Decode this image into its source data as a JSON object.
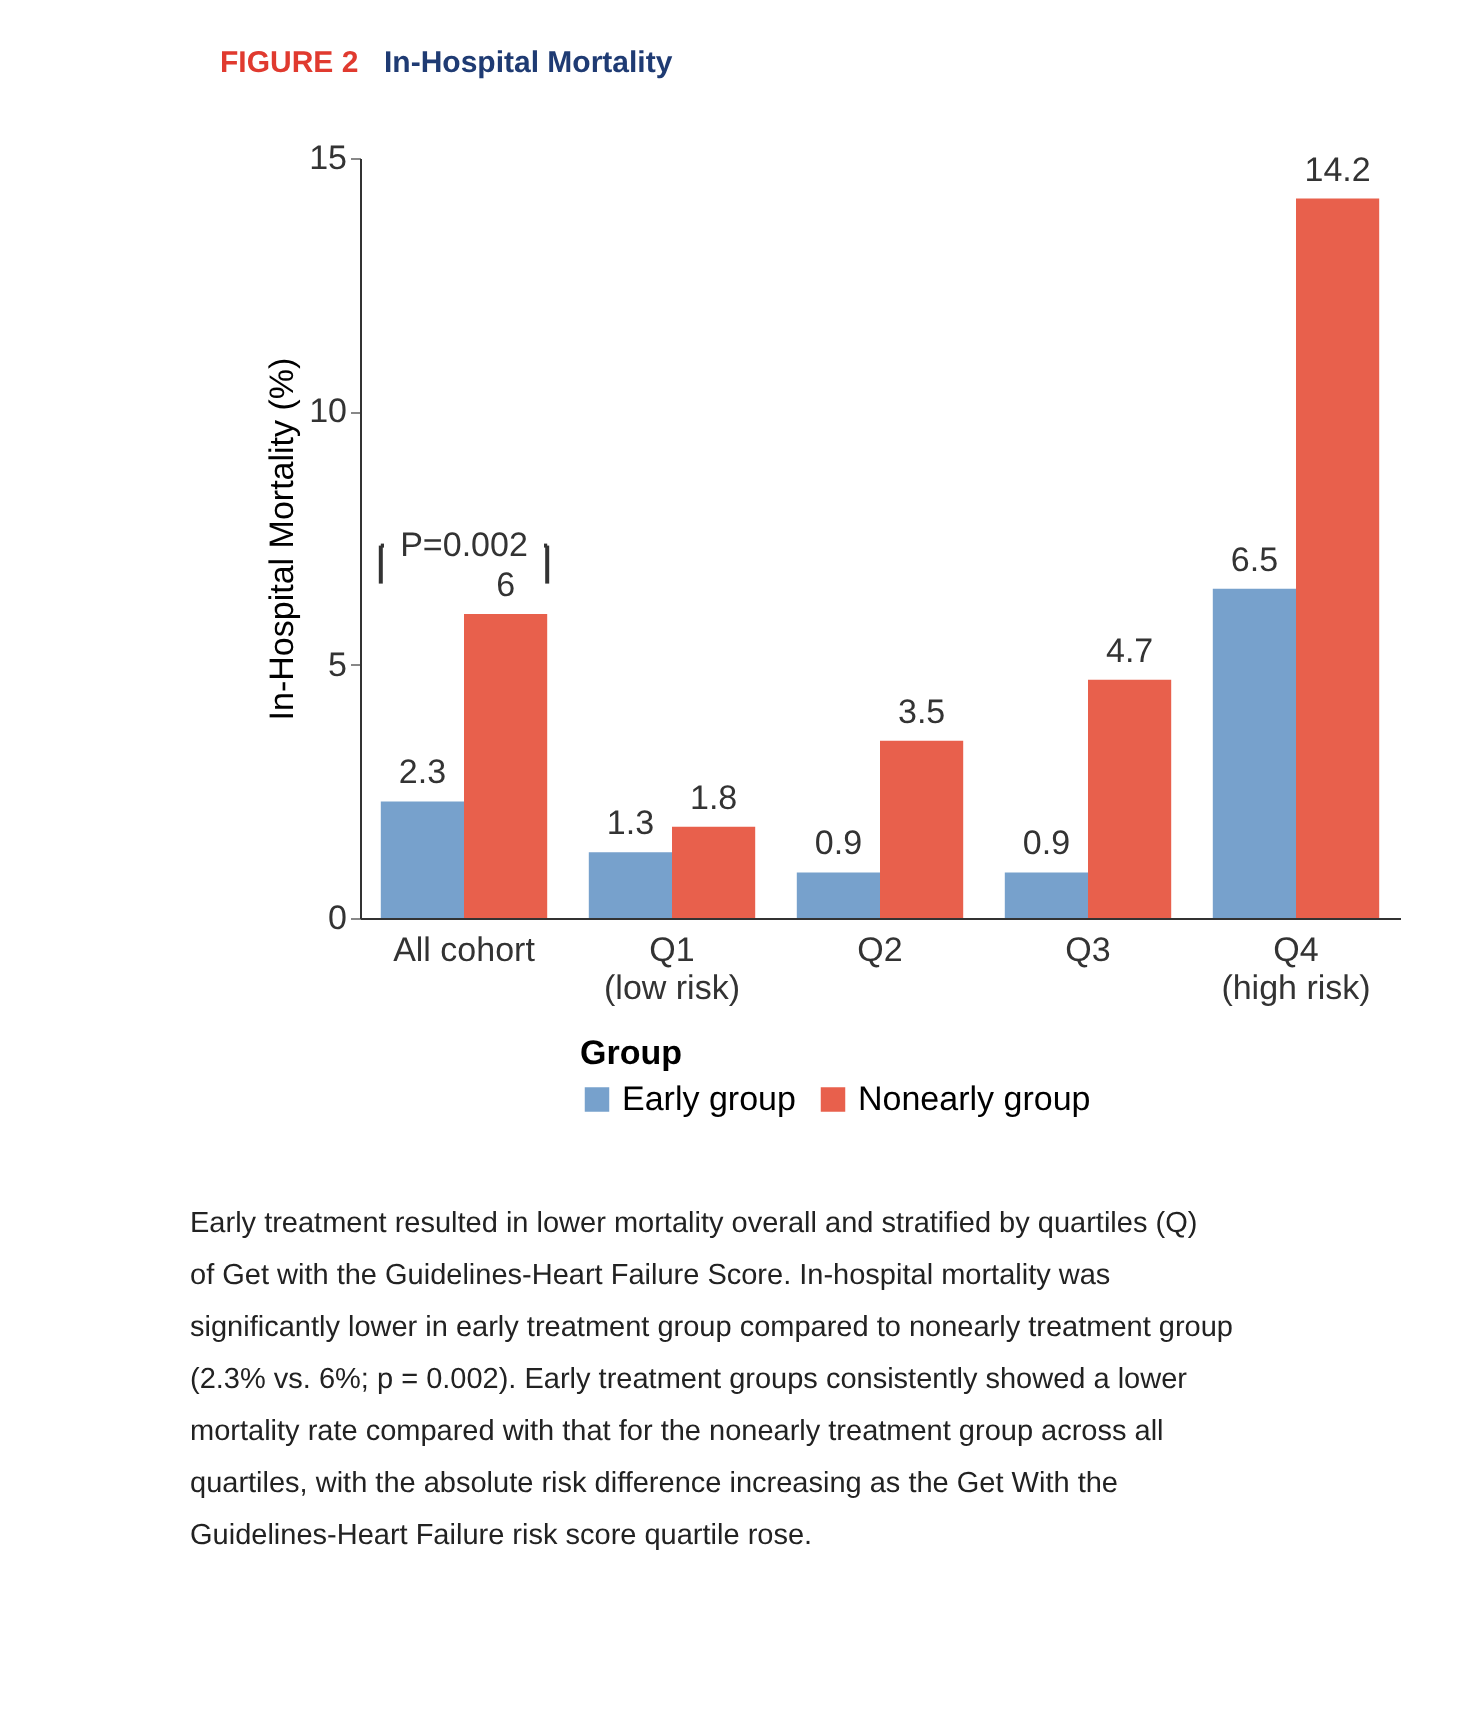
{
  "chart_data": {
    "type": "bar",
    "title": "In-Hospital Mortality",
    "ylabel": "In-Hospital Mortality (%)",
    "legend_title": "Group",
    "categories": [
      "All cohort",
      "Q1\n(low risk)",
      "Q2",
      "Q3",
      "Q4\n(high risk)"
    ],
    "series": [
      {
        "name": "Early group",
        "color": "#77a1cc",
        "values": [
          2.3,
          1.3,
          0.9,
          0.9,
          6.5
        ]
      },
      {
        "name": "Nonearly group",
        "color": "#e8604c",
        "values": [
          6,
          1.8,
          3.5,
          4.7,
          14.2
        ]
      }
    ],
    "ylim": [
      0,
      15
    ],
    "yticks": [
      0,
      5,
      10,
      15
    ],
    "grid": false,
    "legend": "bottom",
    "data_labels": true,
    "annotations": [
      "FIGURE 2",
      "P=0.002",
      "Early treatment resulted in lower mortality overall and stratified by quartiles (Q) of Get with the Guidelines-Heart Failure Score. In-hospital mortality was significantly lower in early treatment group compared to nonearly treatment group (2.3% vs. 6%; p = 0.002). Early treatment groups consistently showed a lower mortality rate compared with that for the nonearly treatment group across all quartiles, with the absolute risk difference increasing as the Get With the Guidelines-Heart Failure risk score quartile rose."
    ]
  }
}
